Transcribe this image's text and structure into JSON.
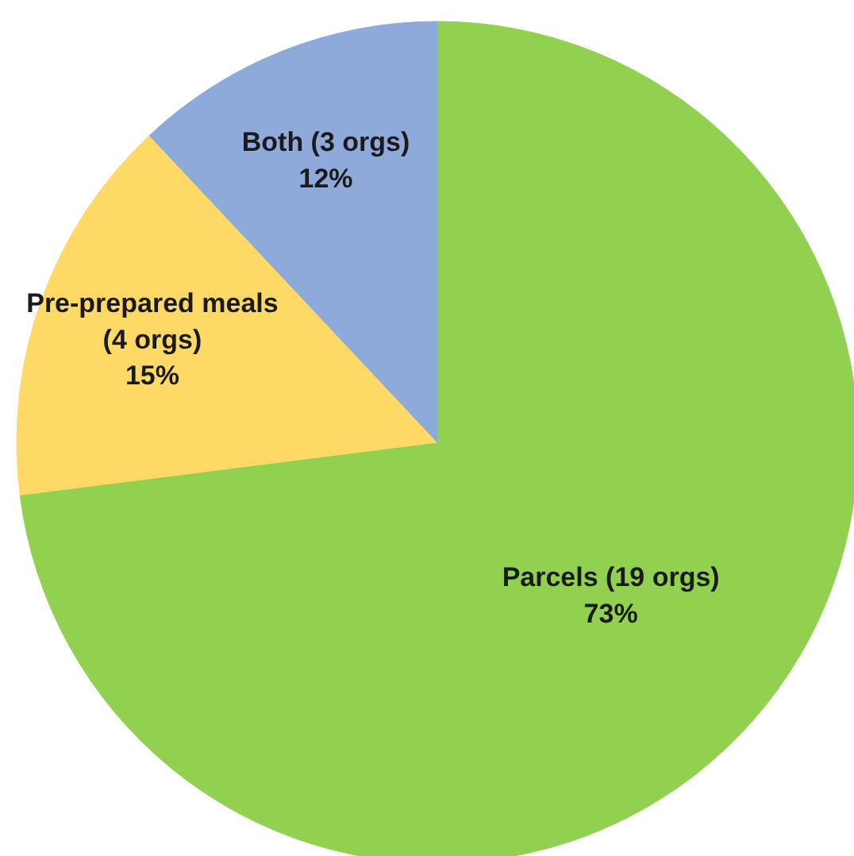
{
  "chart_data": {
    "type": "pie",
    "categories": [
      "Parcels (19 orgs)",
      "Pre-prepared meals (4 orgs)",
      "Both (3 orgs)"
    ],
    "values": [
      73,
      15,
      12
    ],
    "colors": [
      "#92d050",
      "#ffd966",
      "#8eaadb"
    ],
    "value_labels": [
      "73%",
      "15%",
      "12%"
    ]
  }
}
